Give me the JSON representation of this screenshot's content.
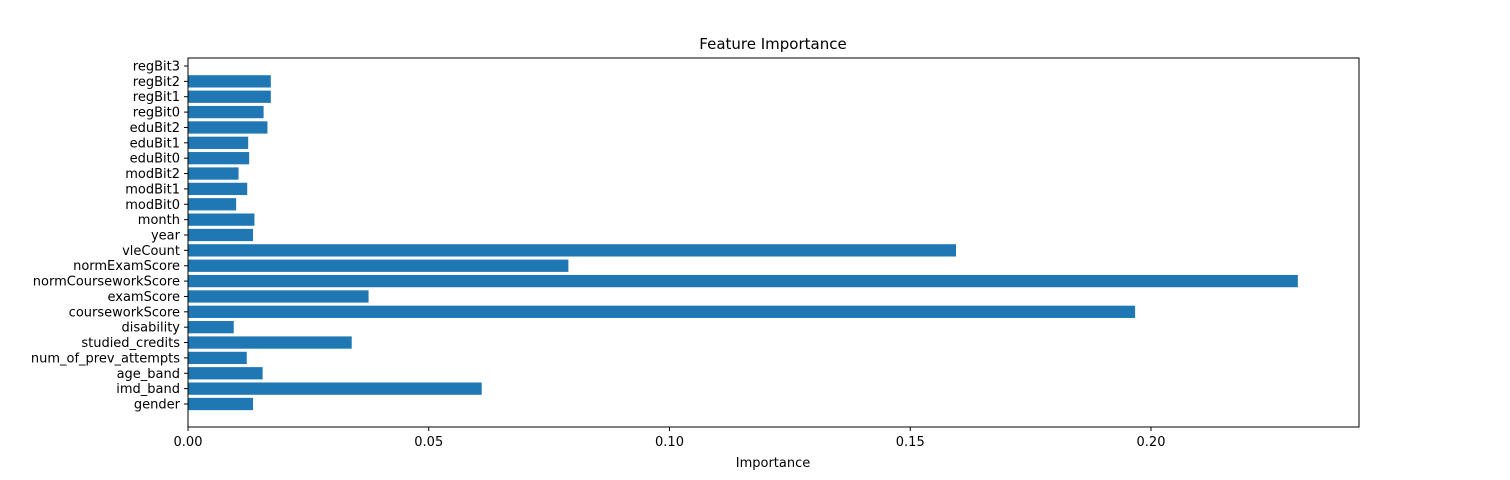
{
  "chart_data": {
    "type": "bar",
    "orientation": "horizontal",
    "title": "Feature Importance",
    "xlabel": "Importance",
    "ylabel": "",
    "xlim": [
      0.0,
      0.2432
    ],
    "xticks": [
      0.0,
      0.05,
      0.1,
      0.15,
      0.2
    ],
    "xtick_labels": [
      "0.00",
      "0.05",
      "0.10",
      "0.15",
      "0.20"
    ],
    "grid": false,
    "bar_color": "#1f77b4",
    "categories": [
      "gender",
      "imd_band",
      "age_band",
      "num_of_prev_attempts",
      "studied_credits",
      "disability",
      "courseworkScore",
      "examScore",
      "normCourseworkScore",
      "normExamScore",
      "vleCount",
      "year",
      "month",
      "modBit0",
      "modBit1",
      "modBit2",
      "eduBit0",
      "eduBit1",
      "eduBit2",
      "regBit0",
      "regBit1",
      "regBit2",
      "regBit3"
    ],
    "values": [
      0.0135,
      0.061,
      0.0155,
      0.0122,
      0.034,
      0.0095,
      0.1967,
      0.0375,
      0.2305,
      0.079,
      0.1595,
      0.0135,
      0.0138,
      0.01,
      0.0123,
      0.0105,
      0.0127,
      0.0125,
      0.0165,
      0.0157,
      0.0172,
      0.0172,
      0.0
    ]
  }
}
